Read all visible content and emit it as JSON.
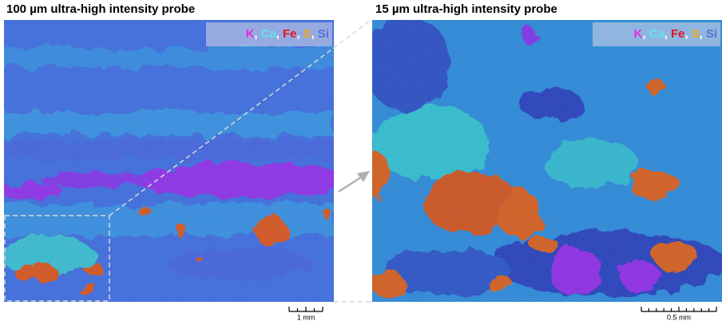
{
  "panels": [
    {
      "title": "100 µm ultra-high intensity probe",
      "legend": {
        "items": [
          {
            "label": "K",
            "color": "#e62ce6"
          },
          {
            "label": "Ca",
            "color": "#5fe3f2"
          },
          {
            "label": "Fe",
            "color": "#e3141e"
          },
          {
            "label": "S",
            "color": "#f5a614"
          },
          {
            "label": "Si",
            "color": "#5a6fd6"
          }
        ],
        "separator": ","
      },
      "scale_bar": "1 mm"
    },
    {
      "title": "15 µm ultra-high intensity probe",
      "legend": {
        "items": [
          {
            "label": "K",
            "color": "#e62ce6"
          },
          {
            "label": "Ca",
            "color": "#5fe3f2"
          },
          {
            "label": "Fe",
            "color": "#e3141e"
          },
          {
            "label": "S",
            "color": "#f5a614"
          },
          {
            "label": "Si",
            "color": "#5a6fd6"
          }
        ],
        "separator": ","
      },
      "scale_bar": "0.5 mm"
    }
  ]
}
